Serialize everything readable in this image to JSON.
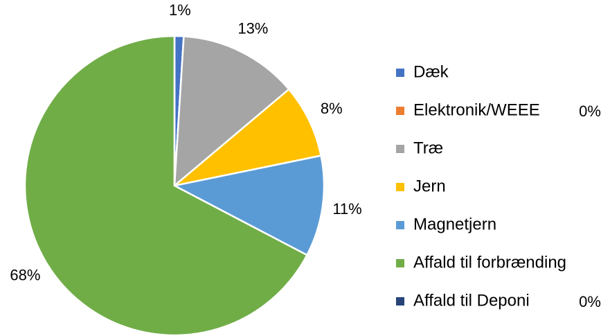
{
  "chart_data": {
    "type": "pie",
    "categories": [
      "Dæk",
      "Elektronik/WEEE",
      "Træ",
      "Jern",
      "Magnetjern",
      "Affald til forbrænding",
      "Affald til Deponi"
    ],
    "values": [
      1,
      0,
      13,
      8,
      11,
      68,
      0
    ],
    "value_labels": [
      "1%",
      "0%",
      "13%",
      "8%",
      "11%",
      "68%",
      "0%"
    ],
    "colors": [
      "#4472c4",
      "#ed7d31",
      "#a5a5a5",
      "#ffc000",
      "#5b9bd5",
      "#70ad47",
      "#264478"
    ],
    "legend": "right"
  }
}
